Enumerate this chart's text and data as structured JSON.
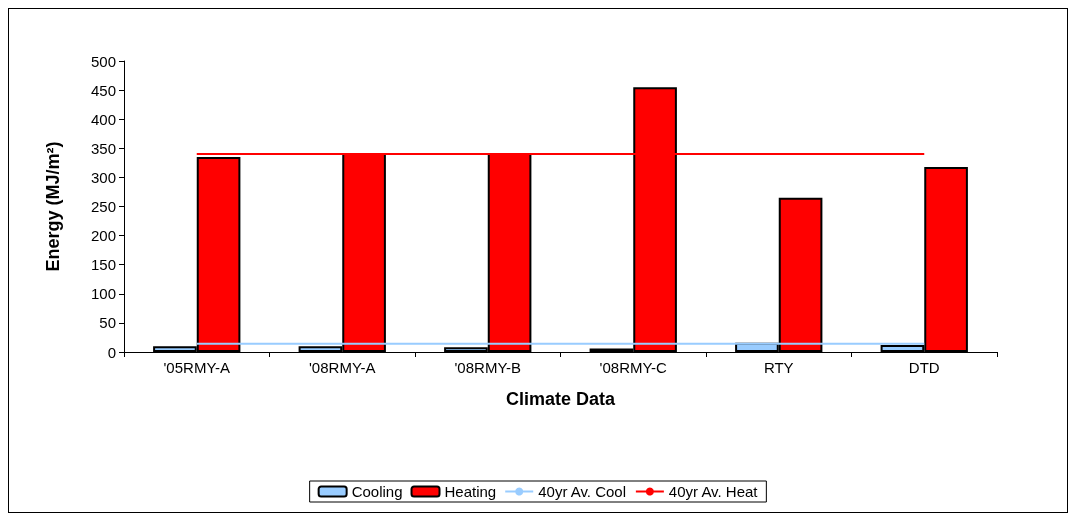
{
  "chart_data": {
    "type": "bar",
    "xlabel": "Climate Data",
    "ylabel": "Energy (MJ/m²)",
    "categories": [
      "'05RMY-A",
      "'08RMY-A",
      "'08RMY-B",
      "'08RMY-C",
      "RTY",
      "DTD"
    ],
    "series": [
      {
        "name": "Cooling",
        "color": "#99ccff",
        "values": [
          10,
          10,
          8,
          6,
          16,
          12
        ]
      },
      {
        "name": "Heating",
        "color": "#ff0000",
        "values": [
          335,
          342,
          342,
          455,
          265,
          318
        ]
      },
      {
        "name": "40yr Av. Cool",
        "type": "line",
        "color": "#99ccff",
        "values": [
          14,
          14,
          14,
          14,
          14,
          14
        ]
      },
      {
        "name": "40yr Av. Heat",
        "type": "line",
        "color": "#ff0000",
        "values": [
          340,
          340,
          340,
          340,
          340,
          340
        ]
      }
    ],
    "ylim": [
      0,
      500
    ],
    "yticks": [
      0,
      50,
      100,
      150,
      200,
      250,
      300,
      350,
      400,
      450,
      500
    ],
    "grid": false,
    "legend": "bottom",
    "marker": "none",
    "line_style": "solid"
  }
}
